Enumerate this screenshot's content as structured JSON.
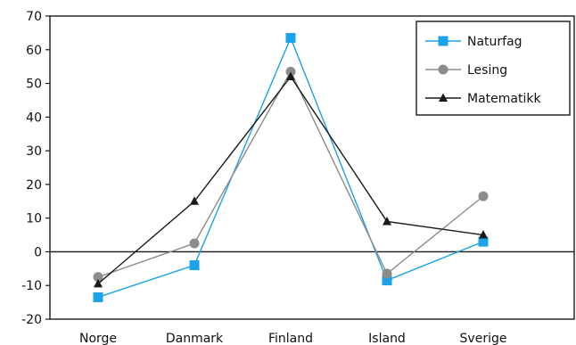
{
  "chart_data": {
    "type": "line",
    "title": "",
    "xlabel": "",
    "ylabel": "",
    "categories": [
      "Norge",
      "Danmark",
      "Finland",
      "Island",
      "Sverige"
    ],
    "ylim": [
      -20,
      70
    ],
    "yticks": [
      -20,
      -10,
      0,
      10,
      20,
      30,
      40,
      50,
      60,
      70
    ],
    "grid": false,
    "legend_position": "top-right",
    "series": [
      {
        "name": "Naturfag",
        "color": "#1aa3e8",
        "marker": "square",
        "values": [
          -13.5,
          -4,
          63.5,
          -8.5,
          3
        ]
      },
      {
        "name": "Lesing",
        "color": "#8c8c8c",
        "marker": "circle",
        "values": [
          -7.5,
          2.5,
          53.5,
          -6.5,
          16.5
        ]
      },
      {
        "name": "Matematikk",
        "color": "#1a1a1a",
        "marker": "triangle",
        "values": [
          -9.5,
          15,
          52,
          9,
          5
        ]
      }
    ]
  }
}
